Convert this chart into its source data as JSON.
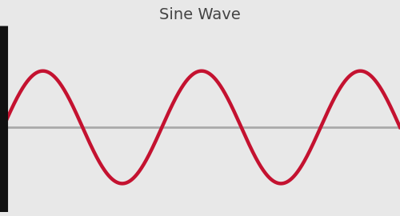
{
  "title": "Sine Wave",
  "title_fontsize": 14,
  "title_color": "#444444",
  "background_color": "#e8e8e8",
  "sine_color": "#c41230",
  "sine_linewidth": 3.2,
  "baseline_color": "#aaaaaa",
  "baseline_linewidth": 2.0,
  "vline_color": "#111111",
  "vline_linewidth": 8,
  "x_end": 2.5,
  "amplitude": 1.0,
  "num_cycles": 2.5,
  "xlim": [
    -0.02,
    2.5
  ],
  "ylim": [
    -1.5,
    1.8
  ],
  "figsize": [
    5.0,
    2.7
  ],
  "dpi": 100
}
